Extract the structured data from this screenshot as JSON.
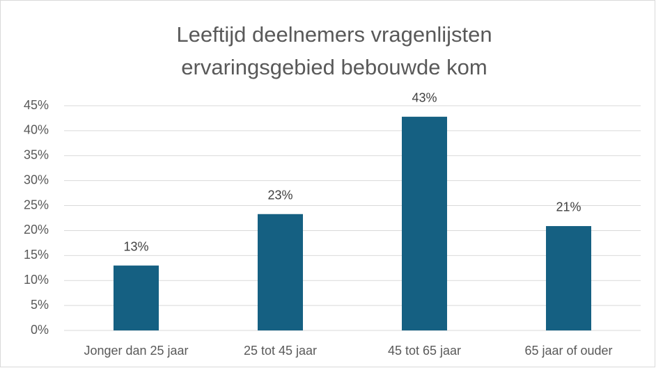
{
  "chart_data": {
    "type": "bar",
    "title": [
      "Leeftijd deelnemers vragenlijsten",
      "ervaringsgebied bebouwde kom"
    ],
    "categories": [
      "Jonger dan 25 jaar",
      "25 tot 45 jaar",
      "45 tot 65 jaar",
      "65 jaar of ouder"
    ],
    "values": [
      13,
      23.3,
      42.8,
      20.9
    ],
    "value_labels": [
      "13%",
      "23%",
      "43%",
      "21%"
    ],
    "color": "#156082",
    "ylim": [
      0,
      45
    ],
    "yticks": [
      {
        "value": 0,
        "label": "0%"
      },
      {
        "value": 5,
        "label": "5%"
      },
      {
        "value": 10,
        "label": "10%"
      },
      {
        "value": 15,
        "label": "15%"
      },
      {
        "value": 20,
        "label": "20%"
      },
      {
        "value": 25,
        "label": "25%"
      },
      {
        "value": 30,
        "label": "30%"
      },
      {
        "value": 35,
        "label": "35%"
      },
      {
        "value": 40,
        "label": "40%"
      },
      {
        "value": 45,
        "label": "45%"
      }
    ],
    "grid": true
  }
}
